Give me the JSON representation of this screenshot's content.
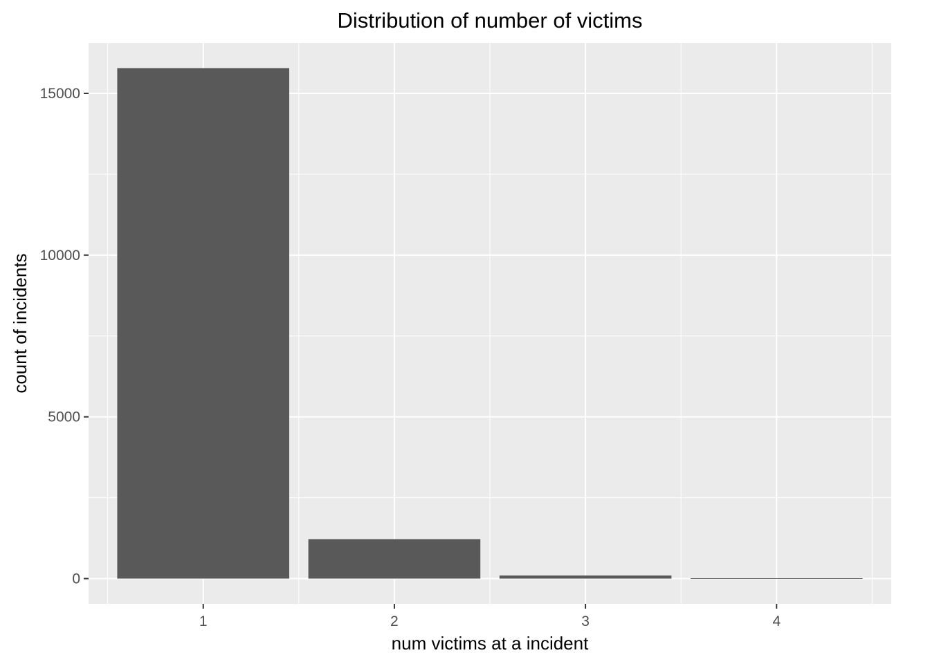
{
  "chart_data": {
    "type": "bar",
    "title": "Distribution  of number of victims",
    "xlabel": "num victims at a incident",
    "ylabel": "count of incidents",
    "categories": [
      "1",
      "2",
      "3",
      "4"
    ],
    "values": [
      15780,
      1220,
      95,
      12
    ],
    "yticks": [
      0,
      5000,
      10000,
      15000
    ],
    "ytick_labels": [
      "0",
      "5000",
      "10000",
      "15000"
    ],
    "ylim": [
      -780,
      16560
    ],
    "grid": true,
    "legend": "none",
    "colors": {
      "panel_background": "#ebebeb",
      "grid_major": "#ffffff",
      "bar_fill": "#595959",
      "tick_mark": "#333333"
    }
  }
}
